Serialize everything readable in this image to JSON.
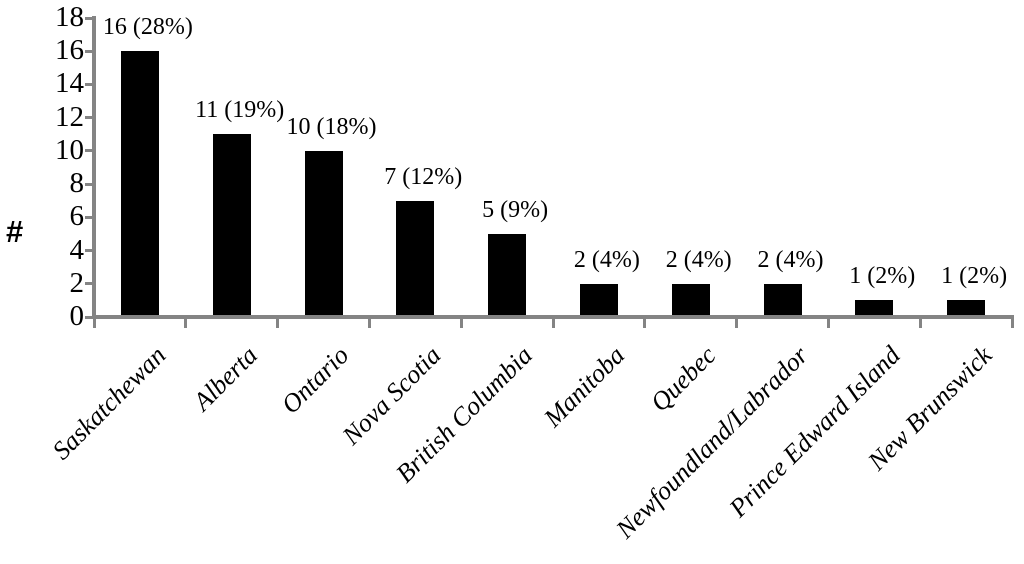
{
  "chart_data": {
    "type": "bar",
    "title": "",
    "xlabel": "",
    "ylabel": "#",
    "categories": [
      "Saskatchewan",
      "Alberta",
      "Ontario",
      "Nova Scotia",
      "British Columbia",
      "Manitoba",
      "Quebec",
      "Newfoundland/Labrador",
      "Prince Edward Island",
      "New Brunswick"
    ],
    "values": [
      16,
      11,
      10,
      7,
      5,
      2,
      2,
      2,
      1,
      1
    ],
    "bar_labels": [
      "16 (28%)",
      "11 (19%)",
      "10 (18%)",
      "7 (12%)",
      "5 (9%)",
      "2 (4%)",
      "2 (4%)",
      "2 (4%)",
      "1 (2%)",
      "1 (2%)"
    ],
    "ylim": [
      0,
      18
    ],
    "yticks": [
      0,
      2,
      4,
      6,
      8,
      10,
      12,
      14,
      16,
      18
    ],
    "grid": false,
    "legend": "none",
    "xtick_rotation_deg": 45,
    "colors": {
      "bar": "#000000",
      "axis": "#848484",
      "text": "#000000",
      "background": "#ffffff"
    }
  }
}
